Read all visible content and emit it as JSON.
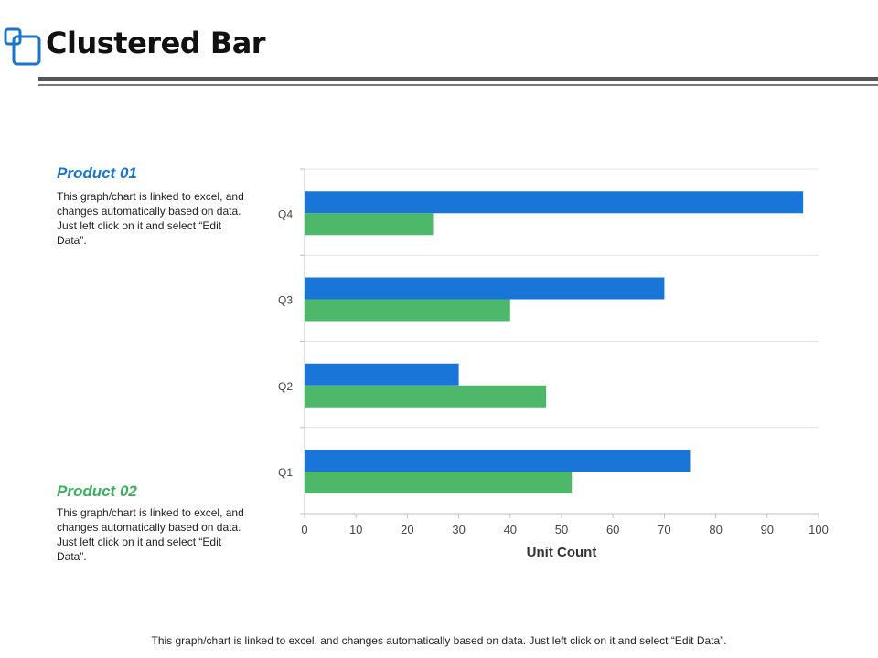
{
  "header": {
    "title": "Clustered Bar"
  },
  "colors": {
    "product01": "#1976D8",
    "product02": "#4DB86A",
    "title_blue": "#1B75C9",
    "title_green": "#3DAE5F"
  },
  "legend_panels": [
    {
      "title": "Product 01",
      "description": "This graph/chart is linked to excel, and changes automatically based on data. Just left click on it and select “Edit Data”."
    },
    {
      "title": "Product 02",
      "description": "This graph/chart is linked to excel, and changes automatically based on data. Just left click on it and select “Edit Data”."
    }
  ],
  "footer": {
    "note": "This graph/chart is linked to excel, and changes automatically based on data. Just left click on it and select “Edit Data”."
  },
  "chart_data": {
    "type": "bar",
    "orientation": "horizontal",
    "title": "",
    "xlabel": "Unit Count",
    "ylabel": "",
    "categories": [
      "Q1",
      "Q2",
      "Q3",
      "Q4"
    ],
    "series": [
      {
        "name": "Product 01",
        "values": [
          75,
          30,
          70,
          97
        ]
      },
      {
        "name": "Product 02",
        "values": [
          52,
          47,
          40,
          25
        ]
      }
    ],
    "xlim": [
      0,
      100
    ],
    "xticks": [
      0,
      10,
      20,
      30,
      40,
      50,
      60,
      70,
      80,
      90,
      100
    ],
    "grid": true
  }
}
